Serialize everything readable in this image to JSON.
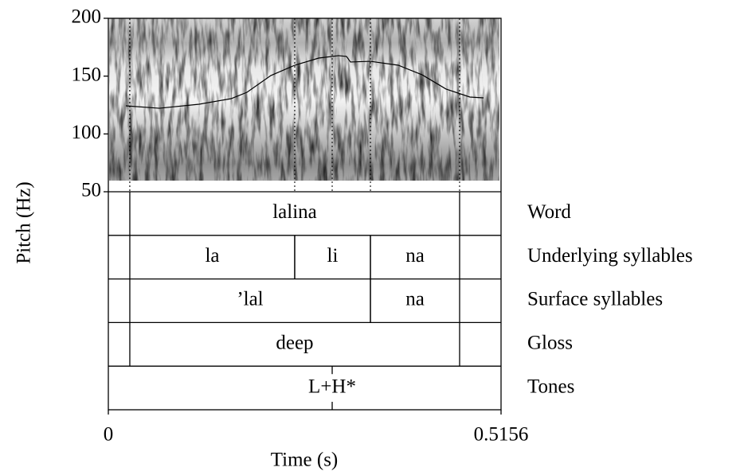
{
  "chart_data": {
    "type": "line",
    "y_label": "Pitch (Hz)",
    "x_label": "Time (s)",
    "xlim": [
      0,
      0.5156
    ],
    "xticks": [
      0,
      0.5156
    ],
    "ylim": [
      50,
      200
    ],
    "yticks": [
      50,
      100,
      150,
      200
    ],
    "color": "#000000",
    "x": [
      0.023,
      0.0669,
      0.1192,
      0.1611,
      0.182,
      0.2134,
      0.2447,
      0.2761,
      0.3022,
      0.3127,
      0.3179,
      0.3441,
      0.3807,
      0.4121,
      0.4434,
      0.4748,
      0.4926
    ],
    "values": [
      124.3,
      122.2,
      125.7,
      130.5,
      136,
      150.5,
      159.4,
      165.6,
      167.7,
      167,
      162.2,
      162.8,
      159.4,
      151.1,
      138.8,
      131.9,
      131.2
    ],
    "tiers": [
      {
        "name": "Word",
        "intervals": [
          {
            "start": 0.0282,
            "end": 0.4612,
            "label": "lalina"
          }
        ]
      },
      {
        "name": "Underlying syllables",
        "intervals": [
          {
            "start": 0.0282,
            "end": 0.2447,
            "label": "la"
          },
          {
            "start": 0.2447,
            "end": 0.3441,
            "label": "li"
          },
          {
            "start": 0.3441,
            "end": 0.4612,
            "label": "na"
          }
        ]
      },
      {
        "name": "Surface syllables",
        "intervals": [
          {
            "start": 0.0282,
            "end": 0.3441,
            "label": "’lal"
          },
          {
            "start": 0.3441,
            "end": 0.4612,
            "label": "na"
          }
        ]
      },
      {
        "name": "Gloss",
        "intervals": [
          {
            "start": 0.0282,
            "end": 0.4612,
            "label": "deep"
          }
        ]
      },
      {
        "name": "Tones",
        "points": [
          {
            "time": 0.2939,
            "label": "L+H*"
          }
        ]
      }
    ]
  }
}
